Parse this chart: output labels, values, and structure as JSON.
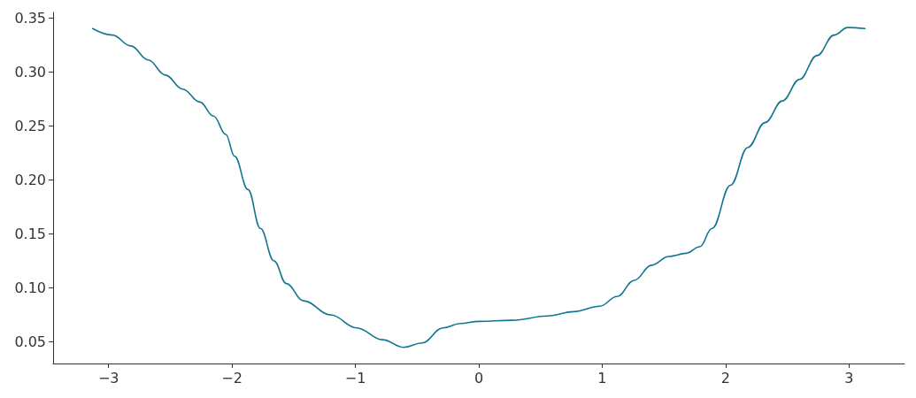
{
  "chart_data": {
    "type": "line",
    "color": "#11768f",
    "grid": false,
    "marker": "none",
    "line_style": "solid",
    "x": [
      -3.13,
      -2.97,
      -2.82,
      -2.68,
      -2.54,
      -2.4,
      -2.26,
      -2.15,
      -2.05,
      -1.98,
      -1.87,
      -1.77,
      -1.66,
      -1.56,
      -1.42,
      -1.2,
      -0.99,
      -0.78,
      -0.61,
      -0.46,
      -0.29,
      -0.15,
      0,
      0.27,
      0.56,
      0.77,
      0.98,
      1.12,
      1.26,
      1.4,
      1.54,
      1.68,
      1.79,
      1.89,
      2.04,
      2.18,
      2.32,
      2.46,
      2.6,
      2.74,
      2.88,
      2.99,
      3.13
    ],
    "values": [
      0.34,
      0.334,
      0.324,
      0.311,
      0.297,
      0.284,
      0.272,
      0.259,
      0.242,
      0.222,
      0.191,
      0.155,
      0.125,
      0.104,
      0.088,
      0.075,
      0.063,
      0.052,
      0.045,
      0.049,
      0.063,
      0.067,
      0.069,
      0.07,
      0.074,
      0.078,
      0.083,
      0.092,
      0.107,
      0.121,
      0.129,
      0.132,
      0.138,
      0.155,
      0.195,
      0.23,
      0.253,
      0.273,
      0.293,
      0.315,
      0.334,
      0.341,
      0.34
    ],
    "xlim": [
      -3.45,
      3.45
    ],
    "ylim": [
      0.03,
      0.355
    ],
    "xticks": [
      {
        "value": -3,
        "label": "−3"
      },
      {
        "value": -2,
        "label": "−2"
      },
      {
        "value": -1,
        "label": "−1"
      },
      0,
      1,
      2,
      3
    ],
    "yticks": [
      {
        "value": 0.05,
        "label": "0.05"
      },
      {
        "value": 0.1,
        "label": "0.10"
      },
      {
        "value": 0.15,
        "label": "0.15"
      },
      {
        "value": 0.2,
        "label": "0.20"
      },
      {
        "value": 0.25,
        "label": "0.25"
      },
      {
        "value": 0.3,
        "label": "0.30"
      },
      {
        "value": 0.35,
        "label": "0.35"
      }
    ]
  }
}
